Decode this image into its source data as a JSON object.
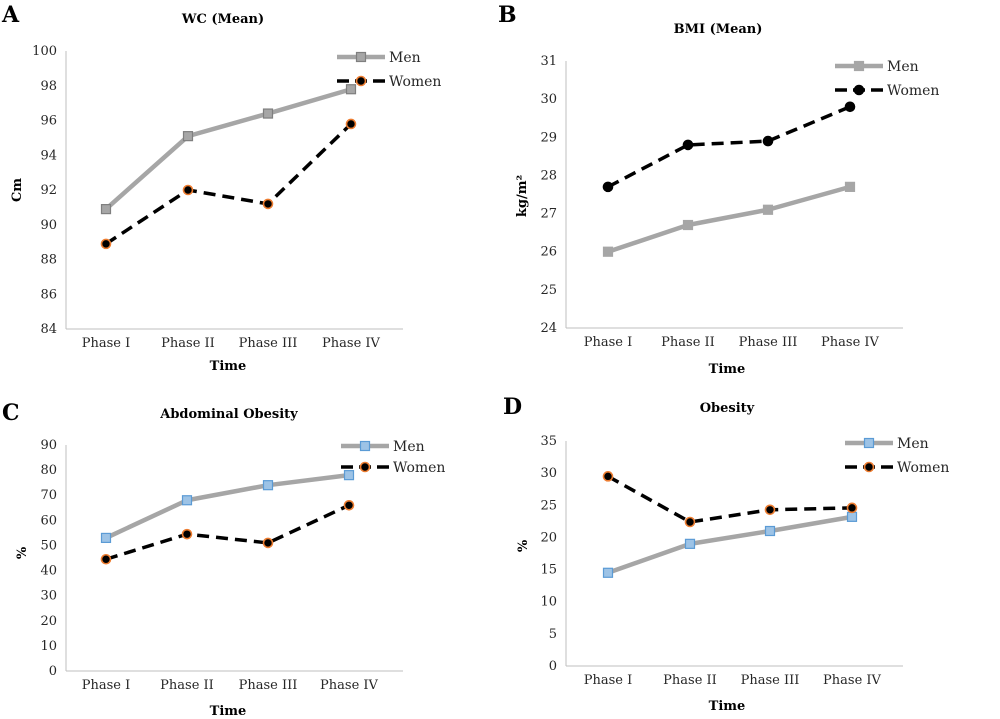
{
  "chart_data": [
    {
      "panel_letter": "A",
      "type": "line",
      "title": "WC (Mean)",
      "xlabel": "Time",
      "ylabel": "Cm",
      "categories": [
        "Phase I",
        "Phase II",
        "Phase III",
        "Phase IV"
      ],
      "ylim": [
        84,
        100
      ],
      "yticks": [
        "84",
        "86",
        "88",
        "90",
        "92",
        "94",
        "96",
        "98",
        "100"
      ],
      "legend_position": "top-right",
      "series": [
        {
          "name": "Men",
          "values": [
            90.9,
            95.1,
            96.4,
            97.8
          ],
          "line_color": "#a6a6a6",
          "dashed": false,
          "marker": "square",
          "marker_fill": "#a6a6a6",
          "marker_edge": "#7f7f7f"
        },
        {
          "name": "Women",
          "values": [
            88.9,
            92.0,
            91.2,
            95.8
          ],
          "line_color": "#000000",
          "dashed": true,
          "marker": "circle",
          "marker_fill": "#000000",
          "marker_edge": "#ed7d31"
        }
      ]
    },
    {
      "panel_letter": "B",
      "type": "line",
      "title": "BMI (Mean)",
      "xlabel": "Time",
      "ylabel": "kg/m²",
      "categories": [
        "Phase I",
        "Phase II",
        "Phase III",
        "Phase IV"
      ],
      "ylim": [
        24,
        31
      ],
      "yticks": [
        "24",
        "25",
        "26",
        "27",
        "28",
        "29",
        "30",
        "31"
      ],
      "legend_position": "top-right",
      "series": [
        {
          "name": "Men",
          "values": [
            26.0,
            26.7,
            27.1,
            27.7
          ],
          "line_color": "#a6a6a6",
          "dashed": false,
          "marker": "square",
          "marker_fill": "#a6a6a6",
          "marker_edge": "#a6a6a6"
        },
        {
          "name": "Women",
          "values": [
            27.7,
            28.8,
            28.9,
            29.8
          ],
          "line_color": "#000000",
          "dashed": true,
          "marker": "circle",
          "marker_fill": "#000000",
          "marker_edge": "#000000"
        }
      ]
    },
    {
      "panel_letter": "C",
      "type": "line",
      "title": "Abdominal Obesity",
      "xlabel": "Time",
      "ylabel": "%",
      "categories": [
        "Phase I",
        "Phase II",
        "Phase III",
        "Phase IV"
      ],
      "ylim": [
        0,
        90
      ],
      "yticks": [
        "0",
        "10",
        "20",
        "30",
        "40",
        "50",
        "60",
        "70",
        "80",
        "90"
      ],
      "legend_position": "top-right",
      "series": [
        {
          "name": "Men",
          "values": [
            53,
            68,
            74,
            78
          ],
          "line_color": "#a6a6a6",
          "dashed": false,
          "marker": "square",
          "marker_fill": "#9dc3e6",
          "marker_edge": "#5b9bd5"
        },
        {
          "name": "Women",
          "values": [
            44.5,
            54.5,
            51,
            66
          ],
          "line_color": "#000000",
          "dashed": true,
          "marker": "circle",
          "marker_fill": "#000000",
          "marker_edge": "#ed7d31"
        }
      ]
    },
    {
      "panel_letter": "D",
      "type": "line",
      "title": "Obesity",
      "xlabel": "Time",
      "ylabel": "%",
      "categories": [
        "Phase I",
        "Phase II",
        "Phase III",
        "Phase IV"
      ],
      "ylim": [
        0,
        35
      ],
      "yticks": [
        "0",
        "5",
        "10",
        "15",
        "20",
        "25",
        "30",
        "35"
      ],
      "legend_position": "top-right",
      "series": [
        {
          "name": "Men",
          "values": [
            14.5,
            19,
            21,
            23.2
          ],
          "line_color": "#a6a6a6",
          "dashed": false,
          "marker": "square",
          "marker_fill": "#9dc3e6",
          "marker_edge": "#5b9bd5"
        },
        {
          "name": "Women",
          "values": [
            29.5,
            22.4,
            24.3,
            24.6
          ],
          "line_color": "#000000",
          "dashed": true,
          "marker": "circle",
          "marker_fill": "#000000",
          "marker_edge": "#ed7d31"
        }
      ]
    }
  ]
}
